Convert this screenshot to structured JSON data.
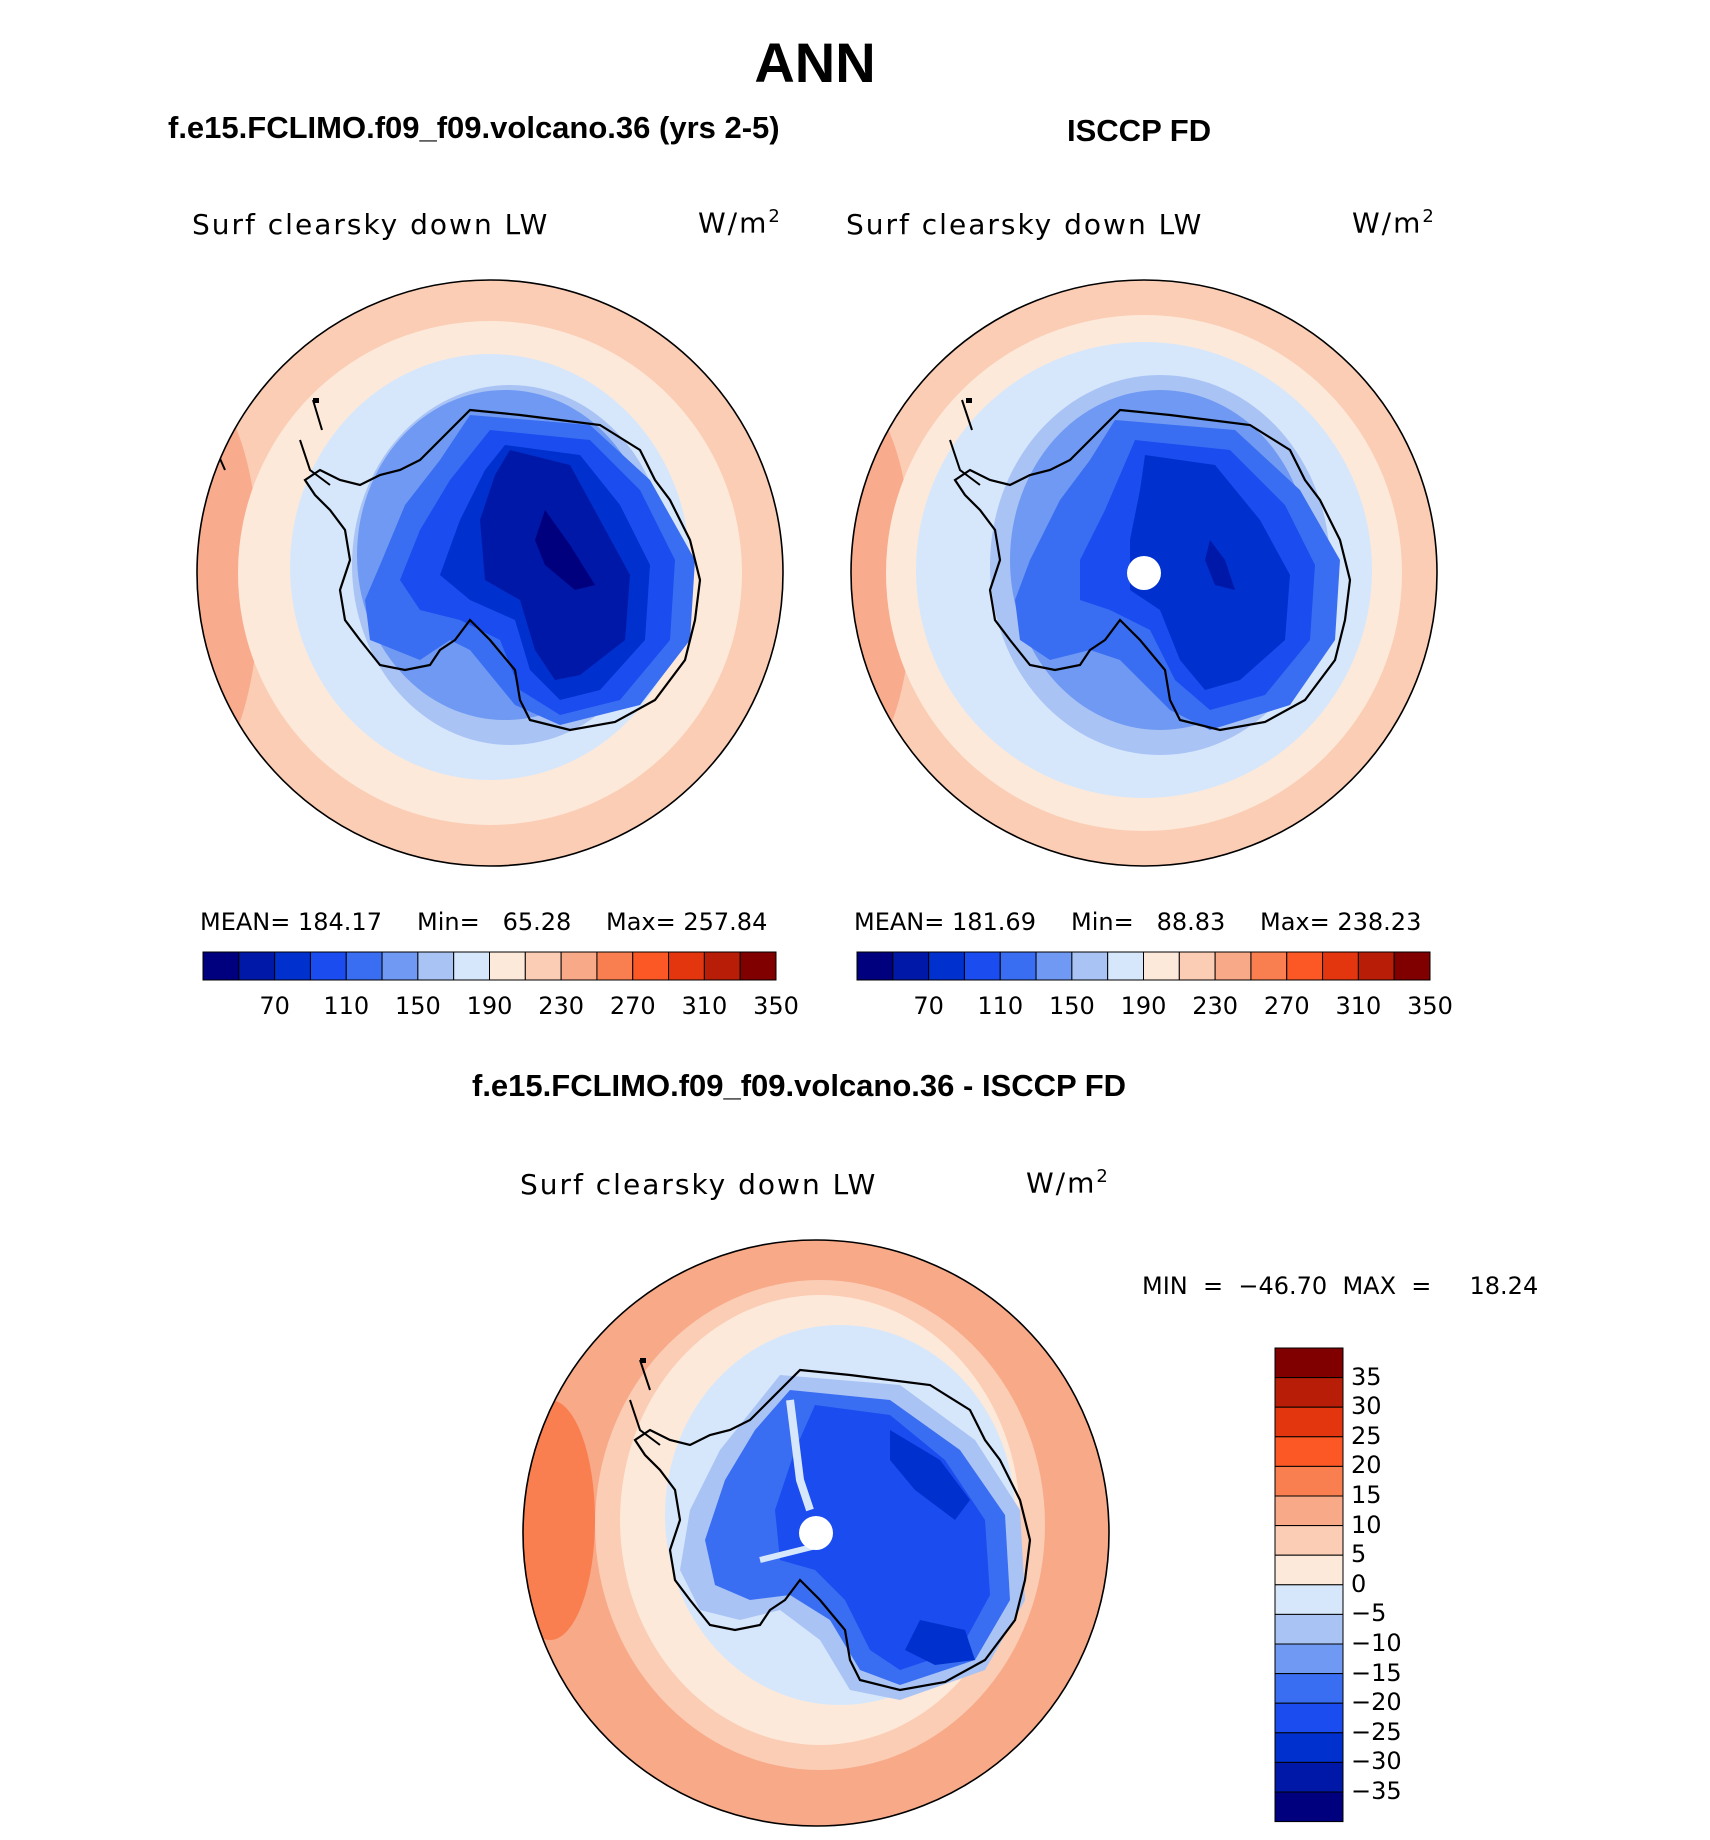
{
  "figure": {
    "season": "ANN"
  },
  "panels": [
    {
      "title": "f.e15.FCLIMO.f09_f09.volcano.36 (yrs 2-5)",
      "variable": "Surf clearsky down LW",
      "units_base": "W/m",
      "units_exp": "2",
      "stats": {
        "mean": "MEAN= 184.17",
        "min": "Min=   65.28",
        "max": "Max= 257.84"
      }
    },
    {
      "title": "ISCCP FD",
      "variable": "Surf clearsky down LW",
      "units_base": "W/m",
      "units_exp": "2",
      "stats": {
        "mean": "MEAN= 181.69",
        "min": "Min=   88.83",
        "max": "Max= 238.23"
      }
    },
    {
      "title": "f.e15.FCLIMO.f09_f09.volcano.36 - ISCCP FD",
      "variable": "Surf clearsky down LW",
      "units_base": "W/m",
      "units_exp": "2",
      "stats": {
        "minmax": "MIN  =  −46.70  MAX  =     18.24"
      }
    }
  ],
  "colorbar_abs": {
    "colors": [
      "#00007e",
      "#0018a8",
      "#0030cd",
      "#1a4cf0",
      "#3a6ef2",
      "#6f99f2",
      "#a9c3f5",
      "#d6e7fb",
      "#fde9da",
      "#fbcdb5",
      "#f8a988",
      "#fa7f50",
      "#fb5825",
      "#e3360f",
      "#b81e07",
      "#800000"
    ],
    "tick_labels": [
      "70",
      "110",
      "150",
      "190",
      "230",
      "270",
      "310",
      "350"
    ]
  },
  "colorbar_diff": {
    "colors": [
      "#00007e",
      "#0018a8",
      "#0030cd",
      "#1a4cf0",
      "#3a6ef2",
      "#6f99f2",
      "#a9c3f5",
      "#d6e7fb",
      "#fde9da",
      "#fbcdb5",
      "#f8a988",
      "#fa7f50",
      "#fb5825",
      "#e3360f",
      "#b81e07",
      "#800000"
    ],
    "tick_labels": [
      "35",
      "30",
      "25",
      "20",
      "15",
      "10",
      "5",
      "0",
      "−5",
      "−10",
      "−15",
      "−20",
      "−25",
      "−30",
      "−35"
    ]
  }
}
